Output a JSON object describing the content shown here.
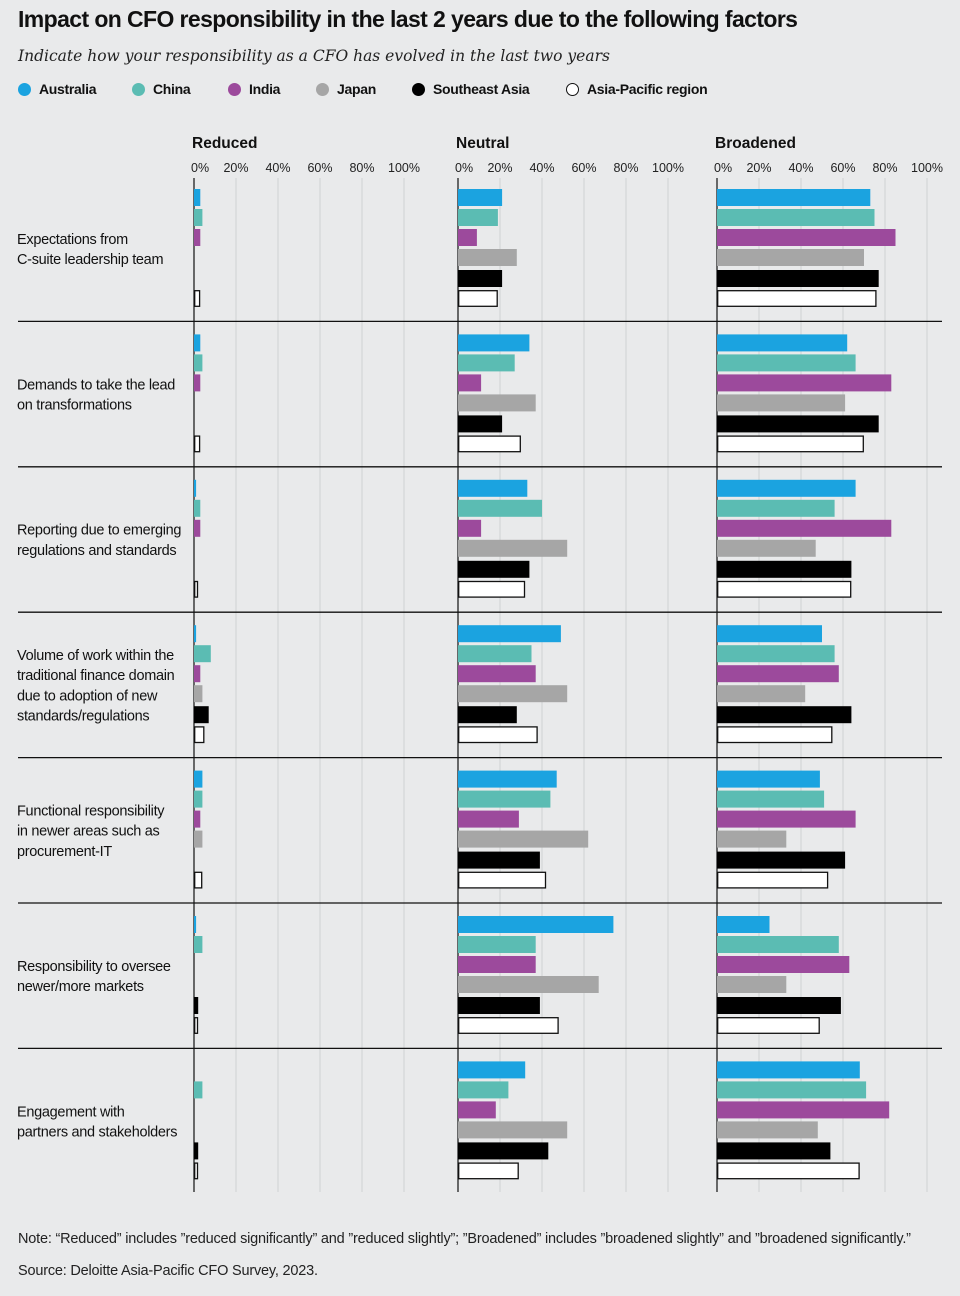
{
  "header": {
    "title": "Impact on CFO responsibility in the last 2 years due to the following factors",
    "subtitle": "Indicate how your responsibility as a CFO has evolved in the last two years"
  },
  "legend": [
    {
      "label": "Australia",
      "color": "#1ba3e0"
    },
    {
      "label": "China",
      "color": "#5bbcb3"
    },
    {
      "label": "India",
      "color": "#9c4a9c"
    },
    {
      "label": "Japan",
      "color": "#a6a6a6"
    },
    {
      "label": "Southeast Asia",
      "color": "#000000"
    },
    {
      "label": "Asia-Pacific region",
      "color": "#ffffff"
    }
  ],
  "chart_data": {
    "type": "bar",
    "orientation": "horizontal",
    "title": "Impact on CFO responsibility in the last 2 years due to the following factors",
    "panels": [
      "Reduced",
      "Neutral",
      "Broadened"
    ],
    "tick_labels": [
      "0%",
      "20%",
      "40%",
      "60%",
      "80%",
      "100%"
    ],
    "xlim": [
      0,
      100
    ],
    "series_names": [
      "Australia",
      "China",
      "India",
      "Japan",
      "Southeast Asia",
      "Asia-Pacific region"
    ],
    "categories": [
      {
        "label_lines": [
          "Expectations from",
          "C-suite leadership team"
        ],
        "Reduced": [
          3,
          4,
          3,
          0,
          0,
          3
        ],
        "Neutral": [
          21,
          19,
          9,
          28,
          21,
          19
        ],
        "Broadened": [
          73,
          75,
          85,
          70,
          77,
          76
        ]
      },
      {
        "label_lines": [
          "Demands to take the lead",
          "on transformations"
        ],
        "Reduced": [
          3,
          4,
          3,
          0,
          0,
          3
        ],
        "Neutral": [
          34,
          27,
          11,
          37,
          21,
          30
        ],
        "Broadened": [
          62,
          66,
          83,
          61,
          77,
          70
        ]
      },
      {
        "label_lines": [
          "Reporting due to emerging",
          "regulations and standards"
        ],
        "Reduced": [
          1,
          3,
          3,
          0,
          0,
          2
        ],
        "Neutral": [
          33,
          40,
          11,
          52,
          34,
          32
        ],
        "Broadened": [
          66,
          56,
          83,
          47,
          64,
          64
        ]
      },
      {
        "label_lines": [
          "Volume of work within the",
          "traditional finance domain",
          "due to adoption of new",
          "standards/regulations"
        ],
        "Reduced": [
          1,
          8,
          3,
          4,
          7,
          5
        ],
        "Neutral": [
          49,
          35,
          37,
          52,
          28,
          38
        ],
        "Broadened": [
          50,
          56,
          58,
          42,
          64,
          55
        ]
      },
      {
        "label_lines": [
          "Functional responsibility",
          "in newer areas such as",
          "procurement-IT"
        ],
        "Reduced": [
          4,
          4,
          3,
          4,
          0,
          4
        ],
        "Neutral": [
          47,
          44,
          29,
          62,
          39,
          42
        ],
        "Broadened": [
          49,
          51,
          66,
          33,
          61,
          53
        ]
      },
      {
        "label_lines": [
          "Responsibility to oversee",
          "newer/more markets"
        ],
        "Reduced": [
          1,
          4,
          0,
          0,
          2,
          2
        ],
        "Neutral": [
          74,
          37,
          37,
          67,
          39,
          48
        ],
        "Broadened": [
          25,
          58,
          63,
          33,
          59,
          49
        ]
      },
      {
        "label_lines": [
          "Engagement with",
          "partners and stakeholders"
        ],
        "Reduced": [
          0,
          4,
          0,
          0,
          2,
          2
        ],
        "Neutral": [
          32,
          24,
          18,
          52,
          43,
          29
        ],
        "Broadened": [
          68,
          71,
          82,
          48,
          54,
          68
        ]
      }
    ]
  },
  "footer": {
    "note": "Note: “Reduced” includes ”reduced significantly” and ”reduced slightly”; ”Broadened” includes ”broadened slightly” and ”broadened significantly.”",
    "source": "Source: Deloitte Asia-Pacific CFO Survey, 2023."
  }
}
